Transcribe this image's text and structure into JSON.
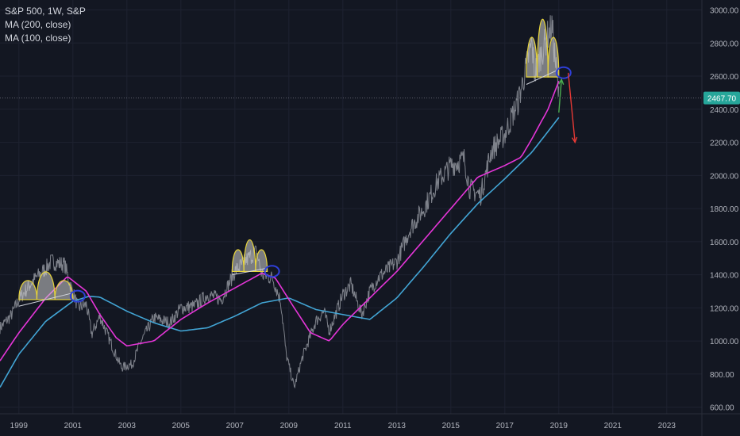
{
  "legend": {
    "title": "S&P 500, 1W, S&P",
    "study_1": "MA (200, close)",
    "study_2": "MA (100, close)"
  },
  "colors": {
    "background": "#131722",
    "grid": "#1e2230",
    "axis_text": "#b2b5be",
    "price_line": "#8a8d96",
    "ma_200": "#42a5d5",
    "ma_100": "#e535d8",
    "last_price_badge": "#26a69a",
    "pattern_fill": "#cfcfcf",
    "pattern_stroke": "#e8d53a",
    "neckline": "#d1d4dc",
    "circle": "#2f3fd8",
    "up_arrow": "#4caf50",
    "down_arrow": "#e53935"
  },
  "chart_data": {
    "type": "line",
    "title": "S&P 500, 1W, S&P",
    "xlabel": "",
    "ylabel": "",
    "xlim": [
      1998.3,
      2024.3
    ],
    "ylim": [
      560,
      3060
    ],
    "scale": "linear",
    "grid": true,
    "legend_position": "top-left",
    "x_ticks": [
      "1999",
      "2001",
      "2003",
      "2005",
      "2007",
      "2009",
      "2011",
      "2013",
      "2015",
      "2017",
      "2019",
      "2021",
      "2023"
    ],
    "x_tick_values": [
      1999,
      2001,
      2003,
      2005,
      2007,
      2009,
      2011,
      2013,
      2015,
      2017,
      2019,
      2021,
      2023
    ],
    "y_ticks": [
      "600.00",
      "800.00",
      "1000.00",
      "1200.00",
      "1400.00",
      "1600.00",
      "1800.00",
      "2000.00",
      "2200.00",
      "2400.00",
      "2600.00",
      "2800.00",
      "3000.00"
    ],
    "y_tick_values": [
      600,
      800,
      1000,
      1200,
      1400,
      1600,
      1800,
      2000,
      2200,
      2400,
      2600,
      2800,
      3000
    ],
    "last_price": {
      "value": 2467.7,
      "label": "2467.70"
    },
    "series": [
      {
        "name": "S&P 500",
        "x": [
          1998.3,
          1998.7,
          1999.0,
          1999.5,
          2000.0,
          2000.2,
          2000.7,
          2000.9,
          2001.2,
          2001.5,
          2001.7,
          2002.0,
          2002.5,
          2002.8,
          2003.2,
          2003.5,
          2004.0,
          2004.6,
          2005.0,
          2005.5,
          2006.0,
          2006.5,
          2007.0,
          2007.5,
          2007.8,
          2008.0,
          2008.4,
          2008.7,
          2008.9,
          2009.2,
          2009.5,
          2010.0,
          2010.3,
          2010.5,
          2011.0,
          2011.3,
          2011.7,
          2012.0,
          2012.3,
          2013.0,
          2013.5,
          2014.0,
          2014.5,
          2015.0,
          2015.5,
          2015.7,
          2016.1,
          2016.5,
          2017.0,
          2017.5,
          2018.0,
          2018.1,
          2018.6,
          2018.75,
          2019.0
        ],
        "y": [
          1080,
          1150,
          1250,
          1360,
          1440,
          1480,
          1460,
          1340,
          1200,
          1220,
          1040,
          1150,
          950,
          840,
          860,
          990,
          1140,
          1110,
          1200,
          1210,
          1280,
          1250,
          1420,
          1500,
          1540,
          1400,
          1380,
          1240,
          920,
          720,
          900,
          1120,
          1180,
          1060,
          1280,
          1340,
          1160,
          1300,
          1380,
          1480,
          1680,
          1800,
          1960,
          2060,
          2100,
          1920,
          1880,
          2150,
          2250,
          2450,
          2800,
          2620,
          2850,
          2900,
          2470
        ]
      },
      {
        "name": "MA (200, close)",
        "x": [
          1998.3,
          1999.0,
          2000.0,
          2001.0,
          2001.6,
          2002.0,
          2003.0,
          2004.0,
          2005.0,
          2006.0,
          2007.0,
          2008.0,
          2009.0,
          2010.0,
          2011.0,
          2012.0,
          2013.0,
          2014.0,
          2015.0,
          2016.0,
          2017.0,
          2018.0,
          2019.0
        ],
        "y": [
          720,
          920,
          1120,
          1240,
          1270,
          1265,
          1180,
          1110,
          1060,
          1080,
          1150,
          1230,
          1260,
          1190,
          1160,
          1130,
          1260,
          1450,
          1650,
          1830,
          1980,
          2140,
          2350
        ]
      },
      {
        "name": "MA (100, close)",
        "x": [
          1998.3,
          1999.0,
          2000.0,
          2000.8,
          2001.5,
          2002.0,
          2002.6,
          2003.0,
          2004.0,
          2005.0,
          2006.0,
          2007.0,
          2008.0,
          2008.5,
          2009.2,
          2009.8,
          2010.5,
          2011.0,
          2012.0,
          2013.0,
          2014.0,
          2015.0,
          2016.0,
          2017.0,
          2017.6,
          2018.0,
          2018.6,
          2019.0
        ],
        "y": [
          880,
          1050,
          1260,
          1390,
          1300,
          1160,
          1020,
          970,
          1000,
          1130,
          1230,
          1320,
          1410,
          1380,
          1200,
          1050,
          1000,
          1100,
          1260,
          1420,
          1610,
          1800,
          1990,
          2060,
          2110,
          2220,
          2400,
          2570
        ]
      }
    ],
    "annotations": [
      {
        "type": "head-and-shoulders",
        "x": [
          1999.0,
          2001.0
        ],
        "neckline_y": [
          1210,
          1290
        ]
      },
      {
        "type": "head-and-shoulders",
        "x": [
          2006.9,
          2008.2
        ],
        "neckline_y": [
          1400,
          1440
        ]
      },
      {
        "type": "head-and-shoulders",
        "x": [
          2017.8,
          2019.0
        ],
        "neckline_y": [
          2550,
          2640
        ]
      },
      {
        "type": "arrow",
        "direction": "up",
        "from": [
          2019.0,
          2380
        ],
        "to": [
          2019.1,
          2580
        ]
      },
      {
        "type": "arrow",
        "direction": "down",
        "from": [
          2019.35,
          2620
        ],
        "to": [
          2019.6,
          2200
        ]
      }
    ]
  }
}
